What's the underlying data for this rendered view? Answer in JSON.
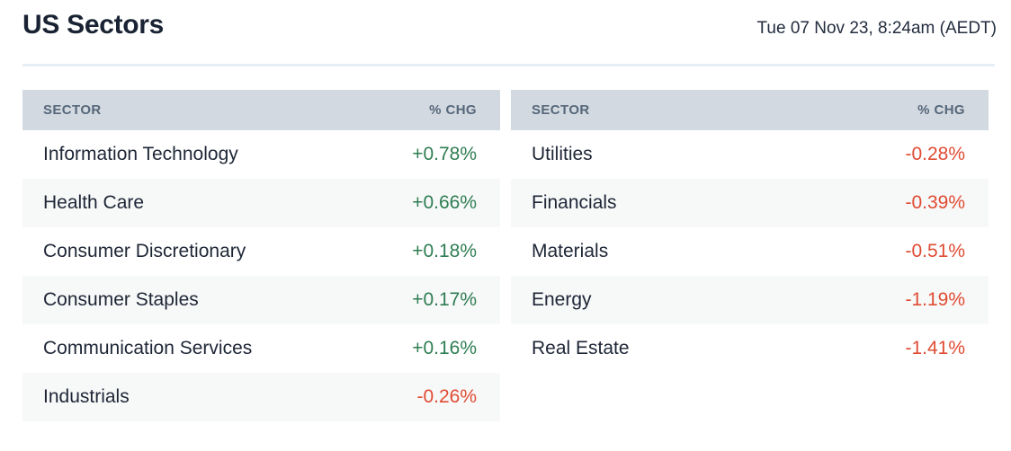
{
  "page": {
    "title": "US Sectors",
    "timestamp": "Tue 07 Nov 23, 8:24am (AEDT)"
  },
  "colors": {
    "positive": "#2e7d52",
    "negative": "#e04b33",
    "header_bg": "#d2d9e0",
    "header_text": "#56677a",
    "row_alt_bg": "#f7f8f8",
    "divider": "#e8eef5",
    "ink": "#1e2636"
  },
  "tables": [
    {
      "headers": {
        "sector": "SECTOR",
        "chg": "% CHG"
      },
      "rows": [
        {
          "sector": "Information Technology",
          "chg": "+0.78%"
        },
        {
          "sector": "Health Care",
          "chg": "+0.66%"
        },
        {
          "sector": "Consumer Discretionary",
          "chg": "+0.18%"
        },
        {
          "sector": "Consumer Staples",
          "chg": "+0.17%"
        },
        {
          "sector": "Communication Services",
          "chg": "+0.16%"
        },
        {
          "sector": "Industrials",
          "chg": "-0.26%"
        }
      ]
    },
    {
      "headers": {
        "sector": "SECTOR",
        "chg": "% CHG"
      },
      "rows": [
        {
          "sector": "Utilities",
          "chg": "-0.28%"
        },
        {
          "sector": "Financials",
          "chg": "-0.39%"
        },
        {
          "sector": "Materials",
          "chg": "-0.51%"
        },
        {
          "sector": "Energy",
          "chg": "-1.19%"
        },
        {
          "sector": "Real Estate",
          "chg": "-1.41%"
        }
      ]
    }
  ],
  "chart_data": [
    {
      "type": "table",
      "title": "US Sectors — gainers/decliners (left table)",
      "columns": [
        "SECTOR",
        "% CHG"
      ],
      "rows": [
        [
          "Information Technology",
          0.78
        ],
        [
          "Health Care",
          0.66
        ],
        [
          "Consumer Discretionary",
          0.18
        ],
        [
          "Consumer Staples",
          0.17
        ],
        [
          "Communication Services",
          0.16
        ],
        [
          "Industrials",
          -0.26
        ]
      ]
    },
    {
      "type": "table",
      "title": "US Sectors — decliners (right table)",
      "columns": [
        "SECTOR",
        "% CHG"
      ],
      "rows": [
        [
          "Utilities",
          -0.28
        ],
        [
          "Financials",
          -0.39
        ],
        [
          "Materials",
          -0.51
        ],
        [
          "Energy",
          -1.19
        ],
        [
          "Real Estate",
          -1.41
        ]
      ]
    }
  ]
}
